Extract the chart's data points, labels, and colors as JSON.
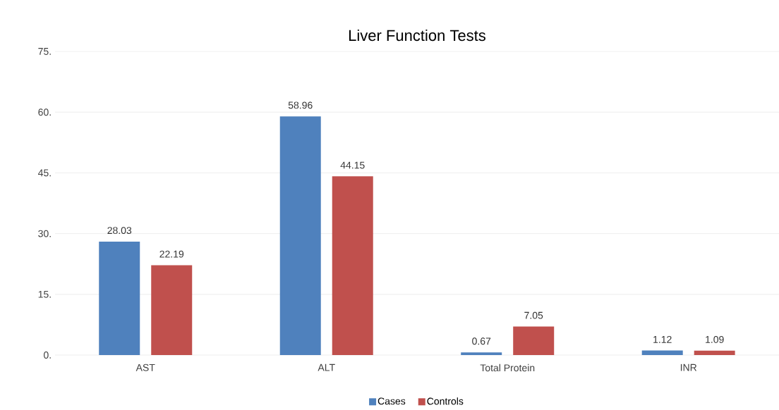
{
  "chart_data": {
    "type": "bar",
    "title": "Liver Function Tests",
    "categories": [
      "AST",
      "ALT",
      "Total Protein",
      "INR"
    ],
    "series": [
      {
        "name": "Cases",
        "color": "#4f81bd",
        "values": [
          28.03,
          58.96,
          0.67,
          1.12
        ]
      },
      {
        "name": "Controls",
        "color": "#c0504d",
        "values": [
          22.19,
          44.15,
          7.05,
          1.09
        ]
      }
    ],
    "ylim": [
      0,
      75
    ],
    "yticks": [
      {
        "value": 0,
        "label": "0."
      },
      {
        "value": 15,
        "label": "15."
      },
      {
        "value": 30,
        "label": "30."
      },
      {
        "value": 45,
        "label": "45."
      },
      {
        "value": 60,
        "label": "60."
      },
      {
        "value": 75,
        "label": "75."
      }
    ],
    "grid": "y",
    "legend": "bottom",
    "data_labels": true
  }
}
